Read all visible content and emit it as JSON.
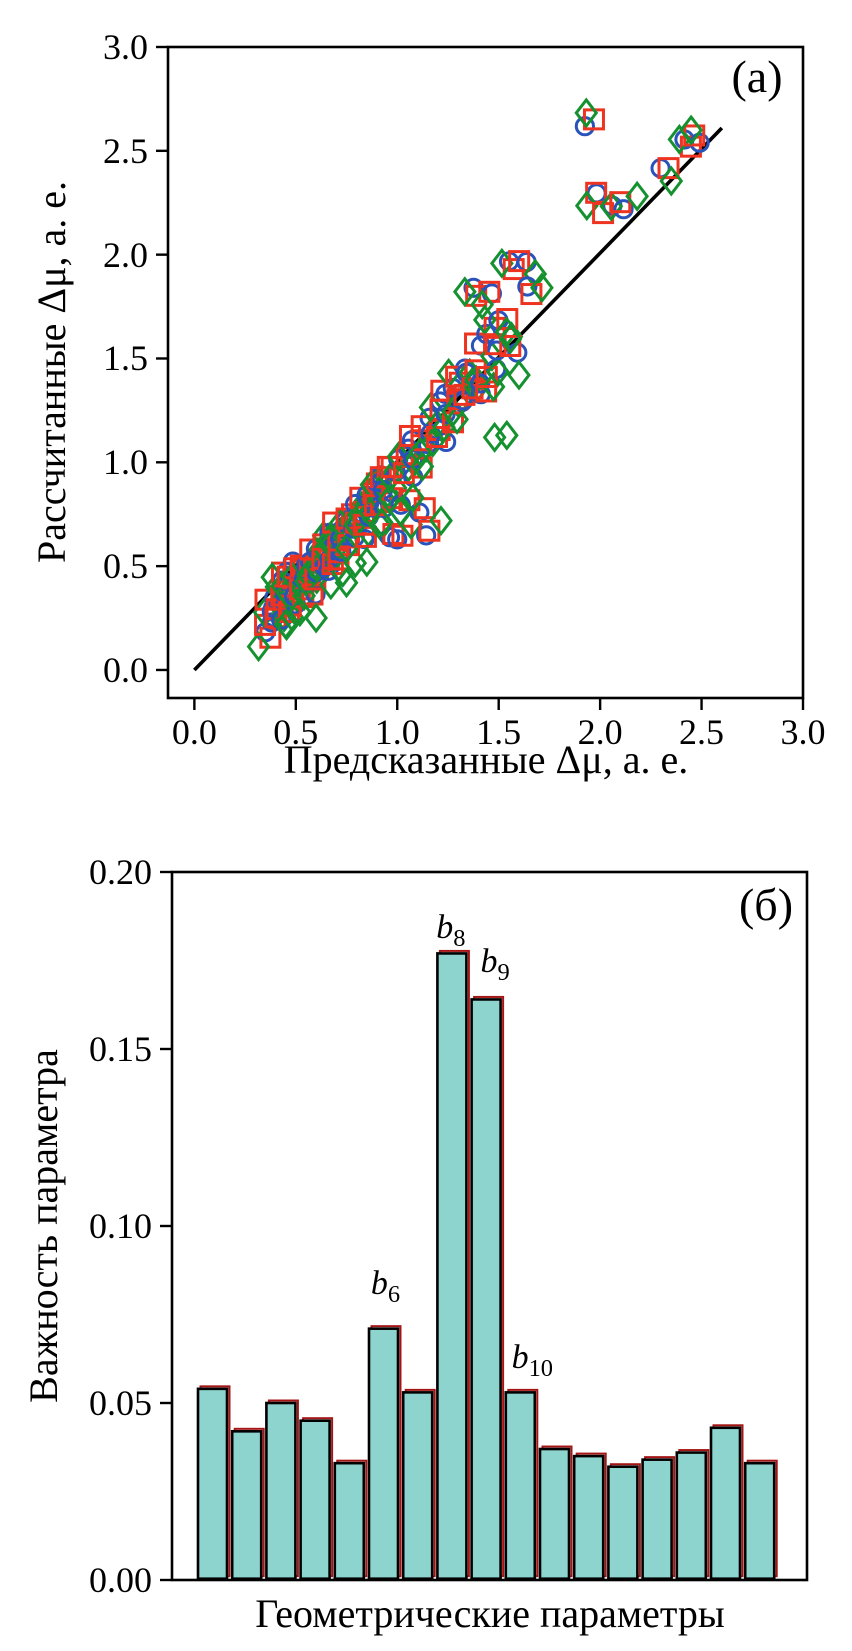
{
  "figure_title": "",
  "chart_data": [
    {
      "type": "scatter",
      "panel_label": "(а)",
      "xlabel": "Предсказанные Δμ, а. е.",
      "ylabel": "Рассчитанные Δμ, а. е.",
      "xlim": [
        -0.13,
        3.0
      ],
      "ylim": [
        -0.135,
        3.0
      ],
      "xticks": [
        "0.0",
        "0.5",
        "1.0",
        "1.5",
        "2.0",
        "2.5",
        "3.0"
      ],
      "yticks": [
        "0.0",
        "0.5",
        "1.0",
        "1.5",
        "2.0",
        "2.5",
        "3.0"
      ],
      "grid": false,
      "identity_line": {
        "from": [
          0.0,
          0.0
        ],
        "to": [
          2.6,
          2.61
        ],
        "color": "#000000"
      },
      "series": [
        {
          "name": "blue-circles",
          "marker": "circle",
          "color": "#2a52bb"
        },
        {
          "name": "red-squares",
          "marker": "square",
          "color": "#ee3421"
        },
        {
          "name": "green-diamonds",
          "marker": "diamond",
          "color": "#15912f"
        }
      ],
      "base_points": [
        [
          0.35,
          0.16
        ],
        [
          0.36,
          0.24
        ],
        [
          0.38,
          0.31
        ],
        [
          0.4,
          0.26
        ],
        [
          0.41,
          0.36
        ],
        [
          0.42,
          0.44
        ],
        [
          0.43,
          0.3
        ],
        [
          0.45,
          0.38
        ],
        [
          0.45,
          0.25
        ],
        [
          0.46,
          0.45
        ],
        [
          0.48,
          0.33
        ],
        [
          0.49,
          0.42
        ],
        [
          0.5,
          0.5
        ],
        [
          0.51,
          0.37
        ],
        [
          0.52,
          0.45
        ],
        [
          0.54,
          0.4
        ],
        [
          0.55,
          0.52
        ],
        [
          0.56,
          0.44
        ],
        [
          0.58,
          0.5
        ],
        [
          0.58,
          0.38
        ],
        [
          0.6,
          0.55
        ],
        [
          0.61,
          0.45
        ],
        [
          0.62,
          0.6
        ],
        [
          0.64,
          0.5
        ],
        [
          0.65,
          0.62
        ],
        [
          0.66,
          0.55
        ],
        [
          0.68,
          0.48
        ],
        [
          0.68,
          0.64
        ],
        [
          0.7,
          0.58
        ],
        [
          0.71,
          0.68
        ],
        [
          0.73,
          0.55
        ],
        [
          0.74,
          0.65
        ],
        [
          0.75,
          0.72
        ],
        [
          0.77,
          0.62
        ],
        [
          0.78,
          0.74
        ],
        [
          0.8,
          0.68
        ],
        [
          0.81,
          0.78
        ],
        [
          0.83,
          0.65
        ],
        [
          0.84,
          0.8
        ],
        [
          0.86,
          0.72
        ],
        [
          0.87,
          0.86
        ],
        [
          0.89,
          0.78
        ],
        [
          0.9,
          0.92
        ],
        [
          0.92,
          0.8
        ],
        [
          0.93,
          0.9
        ],
        [
          0.95,
          0.85
        ],
        [
          0.96,
          0.66
        ],
        [
          0.97,
          0.95
        ],
        [
          1.0,
          1.0
        ],
        [
          1.02,
          0.65
        ],
        [
          1.03,
          0.79
        ],
        [
          1.04,
          1.05
        ],
        [
          1.06,
          0.95
        ],
        [
          1.08,
          1.1
        ],
        [
          1.1,
          1.0
        ],
        [
          1.11,
          0.78
        ],
        [
          1.13,
          1.08
        ],
        [
          1.15,
          1.2
        ],
        [
          1.16,
          0.67
        ],
        [
          1.18,
          1.13
        ],
        [
          1.2,
          1.28
        ],
        [
          1.22,
          1.12
        ],
        [
          1.24,
          1.32
        ],
        [
          1.26,
          1.22
        ],
        [
          1.28,
          1.38
        ],
        [
          1.3,
          1.28
        ],
        [
          1.32,
          1.44
        ],
        [
          1.34,
          1.32
        ],
        [
          1.36,
          1.42
        ],
        [
          1.37,
          1.83
        ],
        [
          1.39,
          1.35
        ],
        [
          1.41,
          1.55
        ],
        [
          1.43,
          1.37
        ],
        [
          1.45,
          1.64
        ],
        [
          1.45,
          1.8
        ],
        [
          1.47,
          1.44
        ],
        [
          1.5,
          1.56
        ],
        [
          1.52,
          1.67
        ],
        [
          1.55,
          1.96
        ],
        [
          1.57,
          1.55
        ],
        [
          1.63,
          1.95
        ],
        [
          1.66,
          1.84
        ],
        [
          1.94,
          2.64
        ],
        [
          1.97,
          2.28
        ],
        [
          2.04,
          2.23
        ],
        [
          2.12,
          2.24
        ],
        [
          2.32,
          2.4
        ],
        [
          2.42,
          2.55
        ],
        [
          2.47,
          2.56
        ]
      ],
      "diamond_only_points": [
        [
          1.48,
          1.12
        ],
        [
          1.54,
          1.13
        ],
        [
          1.6,
          1.42
        ],
        [
          0.6,
          0.25
        ],
        [
          0.45,
          0.22
        ],
        [
          0.52,
          0.28
        ],
        [
          0.75,
          0.42
        ],
        [
          0.85,
          0.52
        ]
      ]
    },
    {
      "type": "bar",
      "panel_label": "(б)",
      "xlabel": "Геометрические параметры",
      "ylabel": "Важность параметра",
      "ylim": [
        0,
        0.2
      ],
      "yticks": [
        "0.00",
        "0.05",
        "0.10",
        "0.15",
        "0.20"
      ],
      "grid": false,
      "bar_fill": "#8cd4cd",
      "bar_edge": "#000000",
      "bar_accent": "#a51515",
      "values": [
        0.054,
        0.042,
        0.05,
        0.045,
        0.033,
        0.071,
        0.053,
        0.177,
        0.164,
        0.053,
        0.037,
        0.035,
        0.032,
        0.034,
        0.036,
        0.043,
        0.033
      ],
      "annotations": [
        {
          "base": "b",
          "sub": "6",
          "bar_index": 5
        },
        {
          "base": "b",
          "sub": "8",
          "bar_index": 7
        },
        {
          "base": "b",
          "sub": "9",
          "bar_index": 8
        },
        {
          "base": "b",
          "sub": "10",
          "bar_index": 9
        }
      ]
    }
  ]
}
